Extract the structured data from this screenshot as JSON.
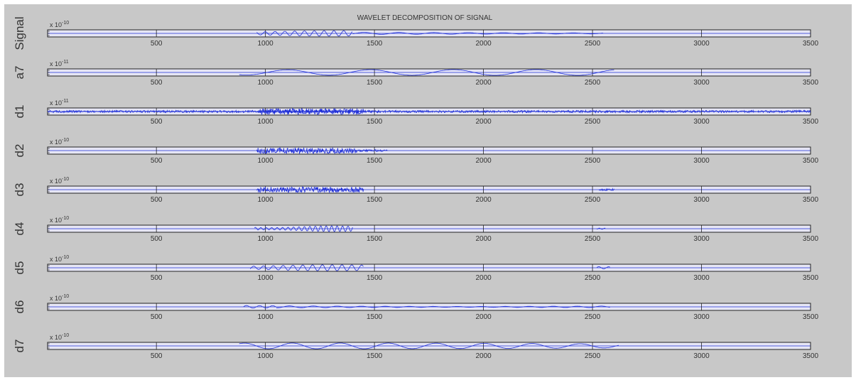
{
  "figure_title": "WAVELET DECOMPOSITION OF SIGNAL",
  "chart_data": {
    "type": "line",
    "title": "WAVELET DECOMPOSITION OF SIGNAL",
    "xlim": [
      1,
      3500
    ],
    "x_ticks": [
      500,
      1000,
      1500,
      2000,
      2500,
      3000,
      3500
    ],
    "grid": false,
    "line_color": "#1f2fd8",
    "axes_bg": "#e6e6f5",
    "panels": [
      {
        "name": "Signal",
        "ylabel": "Signal",
        "exponent": "x 10",
        "exponent_power": "-10",
        "segments": [
          {
            "x0": 960,
            "x1": 1400,
            "kind": "smooth",
            "amp": 0.85,
            "period": 45,
            "phase": 0.3
          },
          {
            "x0": 1400,
            "x1": 2550,
            "kind": "smooth",
            "amp": 0.35,
            "period": 160,
            "phase": 1.1
          }
        ]
      },
      {
        "name": "a7",
        "ylabel": "a7",
        "exponent": "x 10",
        "exponent_power": "-11",
        "segments": [
          {
            "x0": 880,
            "x1": 2600,
            "kind": "smooth",
            "amp": 0.9,
            "period": 380,
            "phase": 2.2
          }
        ]
      },
      {
        "name": "d1",
        "ylabel": "d1",
        "exponent": "x 10",
        "exponent_power": "-11",
        "segments": [
          {
            "x0": 1,
            "x1": 3500,
            "kind": "noise",
            "amp": 0.35,
            "period": 5,
            "phase": 0.0
          },
          {
            "x0": 970,
            "x1": 1450,
            "kind": "noise",
            "amp": 0.95,
            "period": 4,
            "phase": 0.5
          }
        ]
      },
      {
        "name": "d2",
        "ylabel": "d2",
        "exponent": "x 10",
        "exponent_power": "-10",
        "segments": [
          {
            "x0": 960,
            "x1": 1420,
            "kind": "noise",
            "amp": 0.9,
            "period": 6,
            "phase": 0.2
          },
          {
            "x0": 1420,
            "x1": 1560,
            "kind": "noise",
            "amp": 0.3,
            "period": 6,
            "phase": 0.7
          }
        ]
      },
      {
        "name": "d3",
        "ylabel": "d3",
        "exponent": "x 10",
        "exponent_power": "-10",
        "segments": [
          {
            "x0": 960,
            "x1": 1450,
            "kind": "noise",
            "amp": 0.9,
            "period": 10,
            "phase": 0.4
          },
          {
            "x0": 2530,
            "x1": 2600,
            "kind": "noise",
            "amp": 0.3,
            "period": 10,
            "phase": 0.1
          }
        ]
      },
      {
        "name": "d4",
        "ylabel": "d4",
        "exponent": "x 10",
        "exponent_power": "-10",
        "segments": [
          {
            "x0": 950,
            "x1": 1400,
            "kind": "smooth",
            "amp": 0.9,
            "period": 25,
            "phase": 0.6
          },
          {
            "x0": 2520,
            "x1": 2560,
            "kind": "smooth",
            "amp": 0.2,
            "period": 25,
            "phase": 0.0
          }
        ]
      },
      {
        "name": "d5",
        "ylabel": "d5",
        "exponent": "x 10",
        "exponent_power": "-10",
        "segments": [
          {
            "x0": 930,
            "x1": 1450,
            "kind": "smooth",
            "amp": 0.95,
            "period": 45,
            "phase": 1.4
          },
          {
            "x0": 2520,
            "x1": 2580,
            "kind": "smooth",
            "amp": 0.4,
            "period": 45,
            "phase": 0.3
          }
        ]
      },
      {
        "name": "d6",
        "ylabel": "d6",
        "exponent": "x 10",
        "exponent_power": "-10",
        "segments": [
          {
            "x0": 900,
            "x1": 1050,
            "kind": "smooth",
            "amp": 0.9,
            "period": 60,
            "phase": 0.2
          },
          {
            "x0": 1050,
            "x1": 2580,
            "kind": "smooth",
            "amp": 0.35,
            "period": 110,
            "phase": 1.0
          }
        ]
      },
      {
        "name": "d7",
        "ylabel": "d7",
        "exponent": "x 10",
        "exponent_power": "-10",
        "segments": [
          {
            "x0": 880,
            "x1": 2620,
            "kind": "smooth",
            "amp": 0.9,
            "period": 220,
            "phase": 0.9
          }
        ]
      }
    ]
  }
}
